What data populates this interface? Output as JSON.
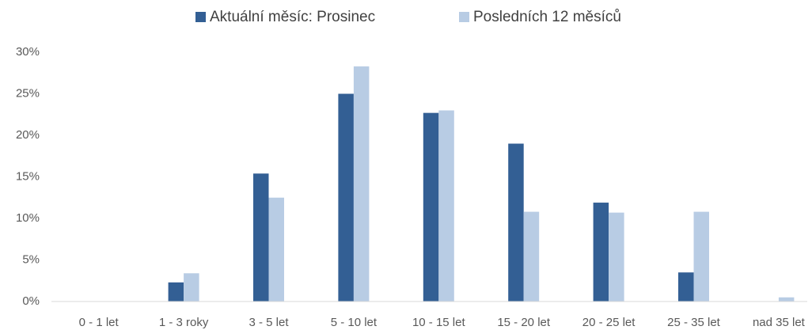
{
  "chart_data": {
    "type": "bar",
    "categories": [
      "0 - 1 let",
      "1 - 3 roky",
      "3 - 5 let",
      "5 - 10 let",
      "10 - 15 let",
      "15 - 20 let",
      "20 - 25 let",
      "25 - 35 let",
      "nad 35 let"
    ],
    "series": [
      {
        "name": "Aktuální měsíc: Prosinec",
        "color": "#335f94",
        "values": [
          0,
          2.3,
          15.4,
          25.0,
          22.7,
          19.0,
          11.9,
          3.5,
          0
        ]
      },
      {
        "name": "Posledních 12 měsíců",
        "color": "#b8cce4",
        "values": [
          0,
          3.4,
          12.5,
          28.3,
          23.0,
          10.8,
          10.7,
          10.8,
          0.5
        ]
      }
    ],
    "ylim": [
      0,
      30
    ],
    "yticks": [
      {
        "value": 0,
        "label": "0%"
      },
      {
        "value": 5,
        "label": "5%"
      },
      {
        "value": 10,
        "label": "10%"
      },
      {
        "value": 15,
        "label": "15%"
      },
      {
        "value": 20,
        "label": "20%"
      },
      {
        "value": 25,
        "label": "25%"
      },
      {
        "value": 30,
        "label": "30%"
      }
    ],
    "grid": false,
    "legend": "top"
  }
}
